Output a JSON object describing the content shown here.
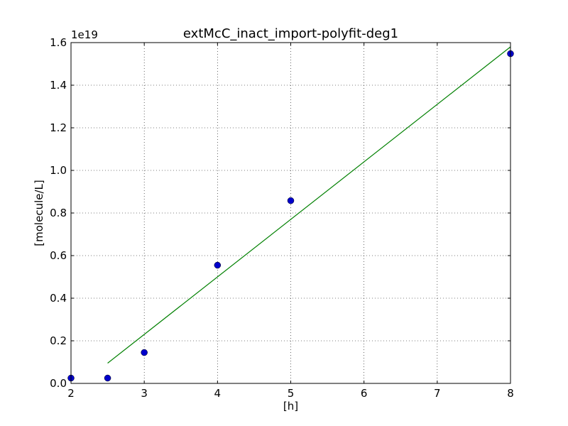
{
  "chart_data": {
    "type": "scatter",
    "title": "extMcC_inact_import-polyfit-deg1",
    "xlabel": "[h]",
    "ylabel": "[molecule/L]",
    "y_offset_label": "1e19",
    "xlim": [
      2,
      8
    ],
    "ylim": [
      0,
      1.6
    ],
    "x_ticks": [
      2,
      3,
      4,
      5,
      6,
      7,
      8
    ],
    "y_ticks": [
      0.0,
      0.2,
      0.4,
      0.6,
      0.8,
      1.0,
      1.2,
      1.4,
      1.6
    ],
    "x_tick_labels": [
      "2",
      "3",
      "4",
      "5",
      "6",
      "7",
      "8"
    ],
    "y_tick_labels": [
      "0.0",
      "0.2",
      "0.4",
      "0.6",
      "0.8",
      "1.0",
      "1.2",
      "1.4",
      "1.6"
    ],
    "grid": true,
    "series": [
      {
        "kind": "points",
        "color": "#0000cc",
        "x": [
          2,
          2.5,
          3,
          4,
          5,
          8
        ],
        "y": [
          0.025,
          0.025,
          0.145,
          0.555,
          0.858,
          1.548
        ]
      },
      {
        "kind": "line",
        "color": "#008000",
        "x": [
          2.5,
          8
        ],
        "y": [
          0.095,
          1.58
        ]
      }
    ]
  }
}
